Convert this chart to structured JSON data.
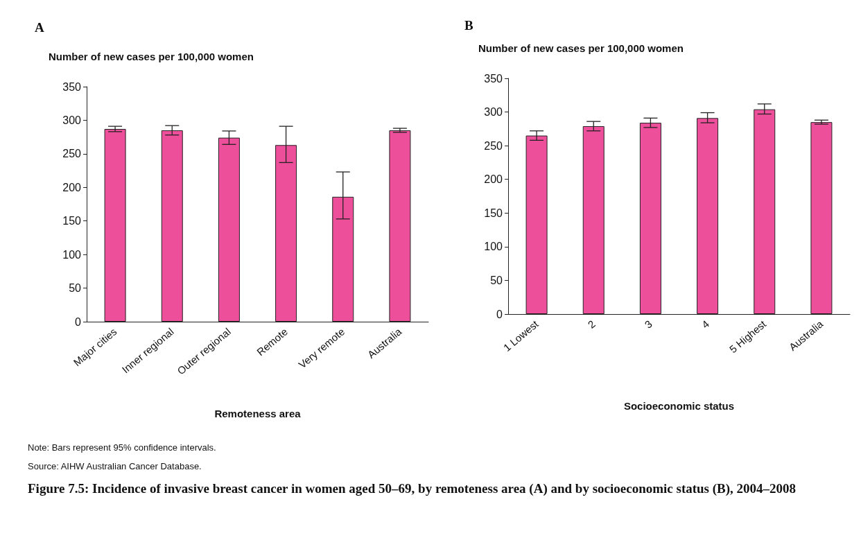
{
  "chart_data": [
    {
      "type": "bar",
      "title": "A",
      "ylabel": "Number of new cases per 100,000 women",
      "xlabel": "Remoteness area",
      "categories": [
        "Major cities",
        "Inner regional",
        "Outer regional",
        "Remote",
        "Very remote",
        "Australia"
      ],
      "values": [
        287,
        285,
        274,
        263,
        186,
        285
      ],
      "errors": [
        [
          283,
          291
        ],
        [
          278,
          292
        ],
        [
          264,
          284
        ],
        [
          237,
          291
        ],
        [
          153,
          223
        ],
        [
          282,
          288
        ]
      ],
      "color": "#ee4f9b",
      "ylim": [
        0,
        350
      ],
      "yticks": [
        0,
        50,
        100,
        150,
        200,
        250,
        300,
        350
      ],
      "grid": false,
      "annotations": [
        "Note: Bars represent 95% confidence intervals.",
        "Source: AIHW Australian Cancer Database.",
        "Figure 7.5: Incidence of invasive breast cancer in women aged 50–69, by remoteness area (A) and by socioeconomic status (B), 2004–2008"
      ]
    },
    {
      "type": "bar",
      "title": "B",
      "ylabel": "Number of new cases per 100,000 women",
      "xlabel": "Socioeconomic status",
      "categories": [
        "1 Lowest",
        "2",
        "3",
        "4",
        "5 Highest",
        "Australia"
      ],
      "values": [
        265,
        279,
        284,
        291,
        304,
        285
      ],
      "errors": [
        [
          258,
          272
        ],
        [
          272,
          286
        ],
        [
          277,
          291
        ],
        [
          284,
          299
        ],
        [
          297,
          312
        ],
        [
          282,
          288
        ]
      ],
      "color": "#ee4f9b",
      "ylim": [
        0,
        350
      ],
      "yticks": [
        0,
        50,
        100,
        150,
        200,
        250,
        300,
        350
      ],
      "grid": false
    }
  ]
}
